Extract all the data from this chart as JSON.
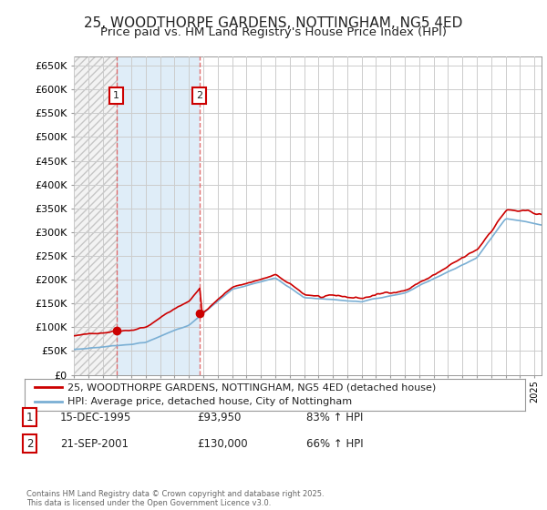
{
  "title": "25, WOODTHORPE GARDENS, NOTTINGHAM, NG5 4ED",
  "subtitle": "Price paid vs. HM Land Registry's House Price Index (HPI)",
  "title_fontsize": 11,
  "subtitle_fontsize": 9.5,
  "background_color": "#ffffff",
  "plot_bg_color": "#ffffff",
  "hatch_bg_color": "#e8e8e8",
  "shade_color": "#daeaf7",
  "grid_color": "#cccccc",
  "ylim": [
    0,
    670000
  ],
  "yticks": [
    0,
    50000,
    100000,
    150000,
    200000,
    250000,
    300000,
    350000,
    400000,
    450000,
    500000,
    550000,
    600000,
    650000
  ],
  "ytick_labels": [
    "£0",
    "£50K",
    "£100K",
    "£150K",
    "£200K",
    "£250K",
    "£300K",
    "£350K",
    "£400K",
    "£450K",
    "£500K",
    "£550K",
    "£600K",
    "£650K"
  ],
  "sale1_year": 1995.96,
  "sale1_price": 93950,
  "sale2_year": 2001.72,
  "sale2_price": 130000,
  "vline_color": "#e06060",
  "property_line_color": "#cc0000",
  "hpi_line_color": "#7aafd4",
  "legend_text1": "25, WOODTHORPE GARDENS, NOTTINGHAM, NG5 4ED (detached house)",
  "legend_text2": "HPI: Average price, detached house, City of Nottingham",
  "note1_num": "1",
  "note1_date": "15-DEC-1995",
  "note1_price": "£93,950",
  "note1_hpi": "83% ↑ HPI",
  "note2_num": "2",
  "note2_date": "21-SEP-2001",
  "note2_price": "£130,000",
  "note2_hpi": "66% ↑ HPI",
  "footer": "Contains HM Land Registry data © Crown copyright and database right 2025.\nThis data is licensed under the Open Government Licence v3.0.",
  "xlim_start": 1993.0,
  "xlim_end": 2025.5,
  "box_edge_color": "#cc0000"
}
